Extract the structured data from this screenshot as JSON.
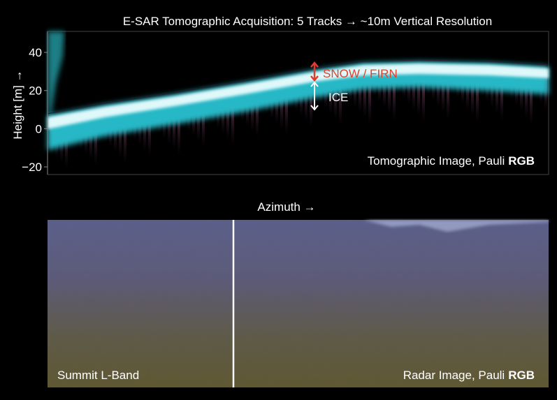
{
  "title": "E-SAR Tomographic Acquisition: 5 Tracks → ~10m Vertical Resolution",
  "top_panel": {
    "y_axis": {
      "label": "Height [m] →",
      "ylim": [
        -24,
        51
      ],
      "ticks": [
        40,
        20,
        0,
        {
          "value": -20,
          "label": "−20"
        }
      ]
    },
    "annotations": [
      "SNOW / FIRN",
      "ICE"
    ],
    "caption": [
      "Tomographic Image, Pauli",
      "RGB"
    ]
  },
  "x_axis_label": "Azimuth →",
  "bottom_panel": {
    "left_caption": "Summit L-Band",
    "caption": [
      "Radar Image, Pauli",
      "RGB"
    ]
  }
}
